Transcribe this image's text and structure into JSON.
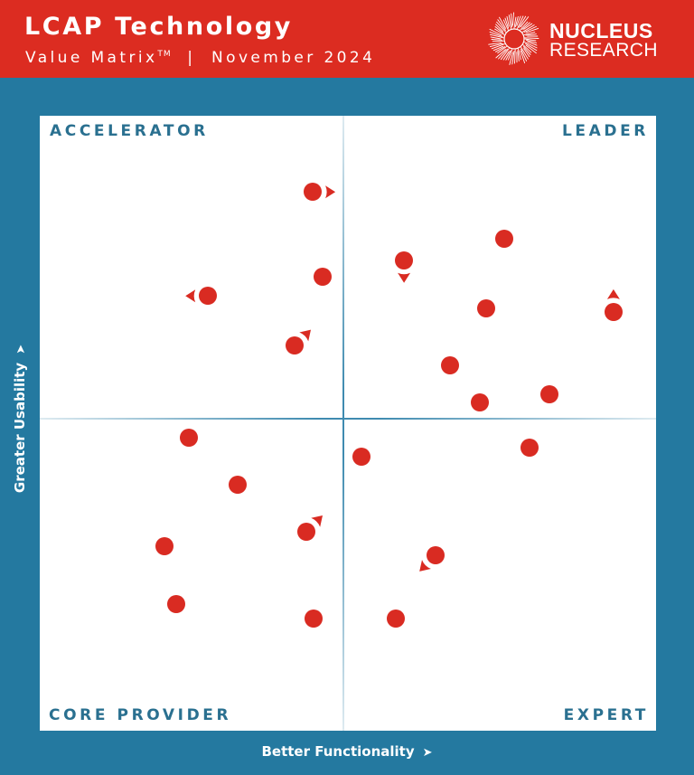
{
  "header": {
    "title": "LCAP Technology",
    "subtitle_main": "Value Matrix",
    "subtitle_tm": "TM",
    "subtitle_rest": "  |  November 2024",
    "logo": {
      "icon": "burst-icon",
      "line1": "NUCLEUS",
      "line2": "RESEARCH"
    }
  },
  "colors": {
    "header_bg": "#dc2c21",
    "frame_bg": "#2479a0",
    "panel_bg": "#ffffff",
    "dot": "#d92b22",
    "quadrant_label": "#2a7090",
    "divider": "#3f8bb0"
  },
  "axes": {
    "x_label": "Better Functionality",
    "y_label": "Greater Usability",
    "x_arrow": "➤",
    "y_arrow": "➤"
  },
  "quadrants": {
    "top_left": "ACCELERATOR",
    "top_right": "LEADER",
    "bottom_left": "CORE PROVIDER",
    "bottom_right": "EXPERT"
  },
  "chart_data": {
    "type": "scatter",
    "title": "LCAP Technology Value Matrix November 2024",
    "xlabel": "Better Functionality",
    "ylabel": "Greater Usability",
    "xlim": [
      0,
      100
    ],
    "ylim": [
      0,
      100
    ],
    "grid": false,
    "quadrant_split": [
      50,
      50
    ],
    "quadrant_labels": [
      "ACCELERATOR",
      "LEADER",
      "CORE PROVIDER",
      "EXPERT"
    ],
    "note": "Positions in % of panel width/height (x from left, y from bottom); unlabeled vendor dots. movement = direction indicator arrow next to the dot.",
    "points": [
      {
        "x": 44.3,
        "y": 87.6,
        "quadrant": "ACCELERATOR",
        "movement": "right"
      },
      {
        "x": 45.9,
        "y": 73.8,
        "quadrant": "ACCELERATOR",
        "movement": "none"
      },
      {
        "x": 27.3,
        "y": 70.7,
        "quadrant": "ACCELERATOR",
        "movement": "left"
      },
      {
        "x": 41.4,
        "y": 62.6,
        "quadrant": "ACCELERATOR",
        "movement": "up-right"
      },
      {
        "x": 75.4,
        "y": 80.0,
        "quadrant": "LEADER",
        "movement": "none"
      },
      {
        "x": 59.1,
        "y": 76.5,
        "quadrant": "LEADER",
        "movement": "down"
      },
      {
        "x": 72.4,
        "y": 68.7,
        "quadrant": "LEADER",
        "movement": "none"
      },
      {
        "x": 93.1,
        "y": 68.1,
        "quadrant": "LEADER",
        "movement": "up"
      },
      {
        "x": 66.6,
        "y": 59.4,
        "quadrant": "LEADER",
        "movement": "none"
      },
      {
        "x": 82.7,
        "y": 54.7,
        "quadrant": "LEADER",
        "movement": "none"
      },
      {
        "x": 71.4,
        "y": 53.4,
        "quadrant": "LEADER",
        "movement": "none"
      },
      {
        "x": 24.2,
        "y": 47.6,
        "quadrant": "CORE PROVIDER",
        "movement": "none"
      },
      {
        "x": 32.1,
        "y": 40.0,
        "quadrant": "CORE PROVIDER",
        "movement": "none"
      },
      {
        "x": 43.3,
        "y": 32.4,
        "quadrant": "CORE PROVIDER",
        "movement": "up-right"
      },
      {
        "x": 20.2,
        "y": 30.0,
        "quadrant": "CORE PROVIDER",
        "movement": "none"
      },
      {
        "x": 22.1,
        "y": 20.6,
        "quadrant": "CORE PROVIDER",
        "movement": "none"
      },
      {
        "x": 44.4,
        "y": 18.2,
        "quadrant": "CORE PROVIDER",
        "movement": "none"
      },
      {
        "x": 52.2,
        "y": 44.6,
        "quadrant": "EXPERT",
        "movement": "none"
      },
      {
        "x": 79.5,
        "y": 46.0,
        "quadrant": "EXPERT",
        "movement": "none"
      },
      {
        "x": 64.2,
        "y": 28.5,
        "quadrant": "EXPERT",
        "movement": "down-left"
      },
      {
        "x": 57.8,
        "y": 18.2,
        "quadrant": "EXPERT",
        "movement": "none"
      }
    ]
  }
}
